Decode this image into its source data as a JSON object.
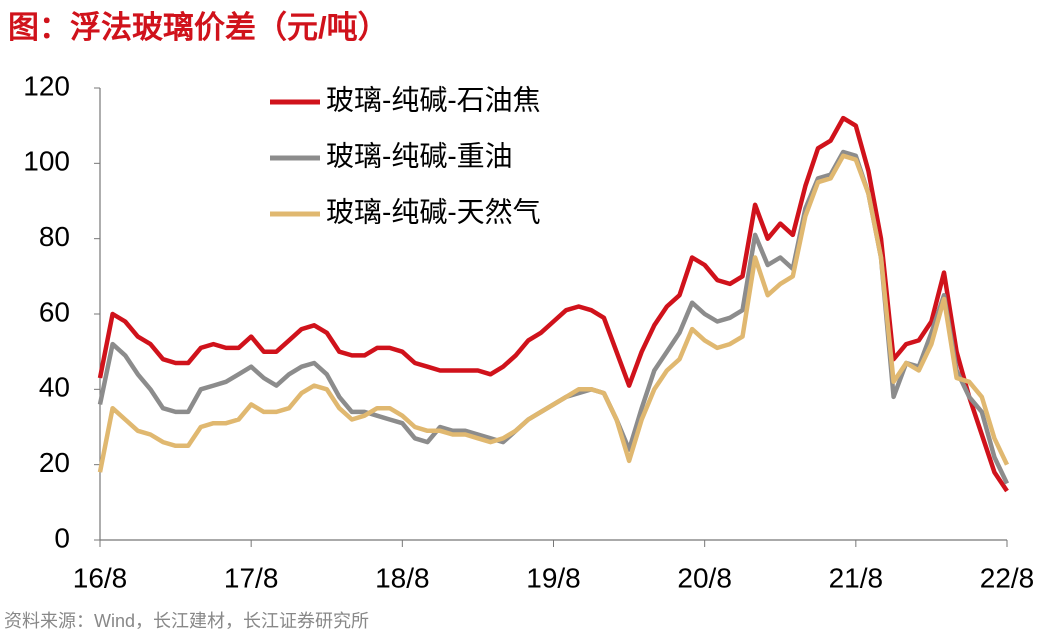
{
  "chart_data": {
    "type": "line",
    "title": "图：浮法玻璃价差（元/吨）",
    "source": "资料来源：Wind，长江建材，长江证券研究所",
    "categories": [
      "16/8",
      null,
      null,
      null,
      null,
      null,
      null,
      null,
      null,
      null,
      null,
      null,
      "17/8",
      null,
      null,
      null,
      null,
      null,
      null,
      null,
      null,
      null,
      null,
      null,
      "18/8",
      null,
      null,
      null,
      null,
      null,
      null,
      null,
      null,
      null,
      null,
      null,
      "19/8",
      null,
      null,
      null,
      null,
      null,
      null,
      null,
      null,
      null,
      null,
      null,
      "20/8",
      null,
      null,
      null,
      null,
      null,
      null,
      null,
      null,
      null,
      null,
      null,
      "21/8",
      null,
      null,
      null,
      null,
      null,
      null,
      null,
      null,
      null,
      null,
      null,
      "22/8"
    ],
    "series": [
      {
        "name": "玻璃-纯碱-石油焦",
        "color": "#d0121b",
        "values": [
          43,
          60,
          58,
          54,
          52,
          48,
          47,
          47,
          51,
          52,
          51,
          51,
          54,
          50,
          50,
          53,
          56,
          57,
          55,
          50,
          49,
          49,
          51,
          51,
          50,
          47,
          46,
          45,
          45,
          45,
          45,
          44,
          46,
          49,
          53,
          55,
          58,
          61,
          62,
          61,
          59,
          50,
          41,
          50,
          57,
          62,
          65,
          75,
          73,
          69,
          68,
          70,
          89,
          80,
          84,
          81,
          94,
          104,
          106,
          112,
          110,
          98,
          80,
          48,
          52,
          53,
          58,
          71,
          50,
          38,
          28,
          18,
          13
        ]
      },
      {
        "name": "玻璃-纯碱-重油",
        "color": "#8c8c8c",
        "values": [
          36,
          52,
          49,
          44,
          40,
          35,
          34,
          34,
          40,
          41,
          42,
          44,
          46,
          43,
          41,
          44,
          46,
          47,
          44,
          38,
          34,
          34,
          33,
          32,
          31,
          27,
          26,
          30,
          29,
          29,
          28,
          27,
          26,
          29,
          32,
          34,
          36,
          38,
          39,
          40,
          39,
          32,
          24,
          35,
          45,
          50,
          55,
          63,
          60,
          58,
          59,
          61,
          81,
          73,
          75,
          72,
          88,
          96,
          97,
          103,
          102,
          92,
          75,
          38,
          47,
          46,
          55,
          65,
          45,
          38,
          34,
          22,
          15
        ]
      },
      {
        "name": "玻璃-纯碱-天然气",
        "color": "#e0b870",
        "values": [
          18,
          35,
          32,
          29,
          28,
          26,
          25,
          25,
          30,
          31,
          31,
          32,
          36,
          34,
          34,
          35,
          39,
          41,
          40,
          35,
          32,
          33,
          35,
          35,
          33,
          30,
          29,
          29,
          28,
          28,
          27,
          26,
          27,
          29,
          32,
          34,
          36,
          38,
          40,
          40,
          39,
          32,
          21,
          32,
          40,
          45,
          48,
          56,
          53,
          51,
          52,
          54,
          75,
          65,
          68,
          70,
          86,
          95,
          96,
          102,
          101,
          92,
          75,
          42,
          47,
          45,
          52,
          64,
          43,
          42,
          38,
          27,
          20
        ]
      }
    ],
    "ylim": [
      0,
      120
    ],
    "yticks": [
      0,
      20,
      40,
      60,
      80,
      100,
      120
    ],
    "grid": false,
    "legend": "upper left"
  }
}
